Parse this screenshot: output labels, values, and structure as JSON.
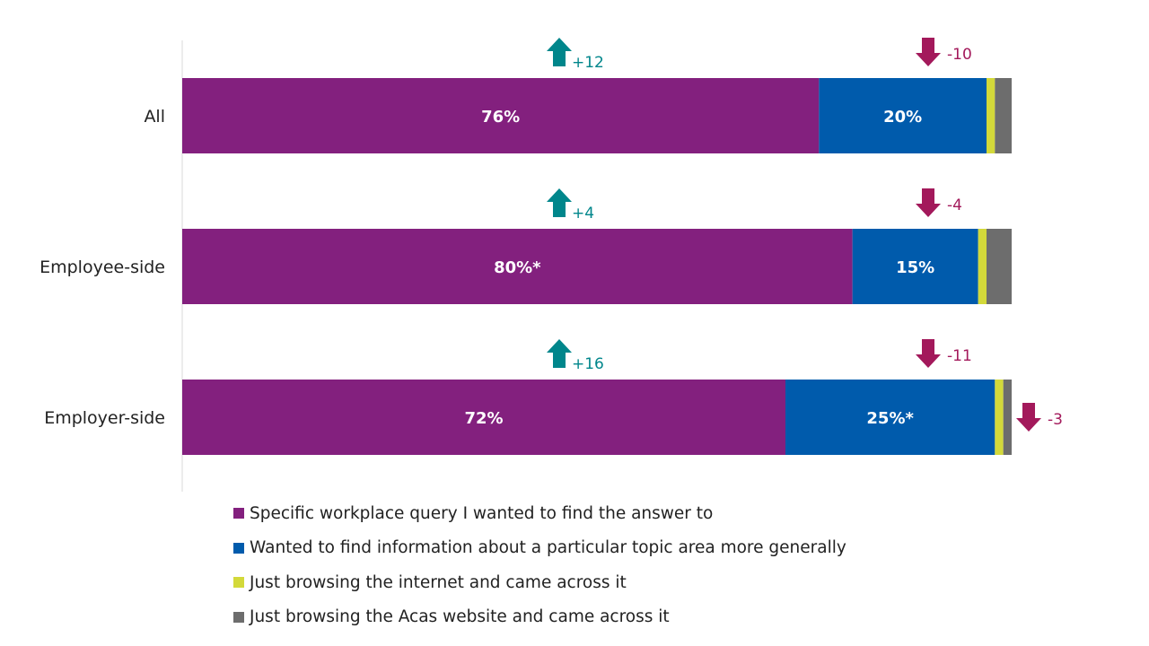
{
  "chart_data": {
    "type": "bar",
    "orientation": "horizontal",
    "stacked": true,
    "categories": [
      "All",
      "Employee-side",
      "Employer-side"
    ],
    "series": [
      {
        "name": "Specific workplace query I wanted to find the answer to",
        "color": "#83207e",
        "values": [
          76,
          80,
          72
        ],
        "labels": [
          "76%",
          "80%*",
          "72%"
        ]
      },
      {
        "name": "Wanted to find information about a particular topic area more generally",
        "color": "#005bac",
        "values": [
          20,
          15,
          25
        ],
        "labels": [
          "20%",
          "15%",
          "25%*"
        ]
      },
      {
        "name": "Just browsing the internet and came across it",
        "color": "#d3d93a",
        "values": [
          1,
          1,
          1
        ],
        "labels": [
          "",
          "",
          ""
        ]
      },
      {
        "name": "Just browsing the Acas website and came across it",
        "color": "#6d6d6d",
        "values": [
          2,
          3,
          1
        ],
        "labels": [
          "",
          "",
          ""
        ]
      }
    ],
    "xlim": [
      0,
      100
    ],
    "grid": false,
    "legend_position": "bottom",
    "annotations": [
      {
        "category": 0,
        "series": 0,
        "direction": "up",
        "label": "+12"
      },
      {
        "category": 0,
        "series": 1,
        "direction": "down",
        "label": "-10"
      },
      {
        "category": 1,
        "series": 0,
        "direction": "up",
        "label": "+4"
      },
      {
        "category": 1,
        "series": 1,
        "direction": "down",
        "label": "-4"
      },
      {
        "category": 2,
        "series": 0,
        "direction": "up",
        "label": "+16"
      },
      {
        "category": 2,
        "series": 1,
        "direction": "down",
        "label": "-11"
      },
      {
        "category": 2,
        "series": 3,
        "direction": "down",
        "label": "-3"
      }
    ],
    "annotation_colors": {
      "up": "#00868b",
      "down": "#a3195b"
    }
  }
}
